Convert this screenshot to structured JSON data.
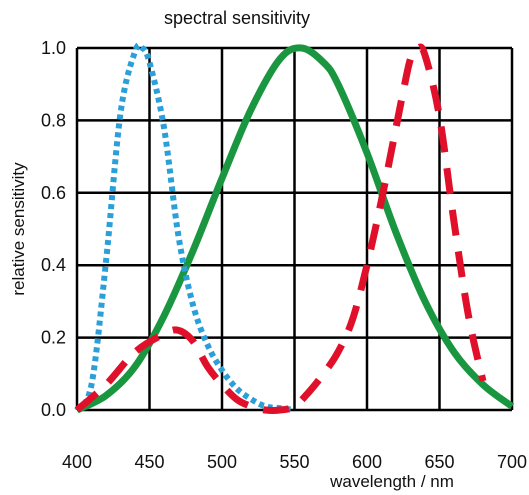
{
  "chart_data": {
    "type": "line",
    "title": "spectral sensitivity",
    "xlabel": "wavelength / nm",
    "ylabel": "relative sensitivity",
    "xlim": [
      400,
      700
    ],
    "ylim": [
      0,
      1
    ],
    "x_ticks": [
      "400",
      "450",
      "500",
      "550",
      "600",
      "650",
      "700"
    ],
    "y_ticks": [
      "0.0",
      "0.2",
      "0.4",
      "0.6",
      "0.8",
      "1.0"
    ],
    "grid": true,
    "legend": "none",
    "series": [
      {
        "color": "#2a9fd8",
        "style": "dotted",
        "x": [
          400,
          410,
          420,
          430,
          440,
          445,
          450,
          460,
          470,
          480,
          490,
          500,
          510,
          520,
          530,
          540,
          550
        ],
        "y": [
          0.0,
          0.07,
          0.41,
          0.82,
          0.99,
          1.0,
          0.96,
          0.78,
          0.48,
          0.29,
          0.18,
          0.11,
          0.06,
          0.03,
          0.01,
          0.005,
          0.0
        ]
      },
      {
        "color": "#1a9640",
        "style": "solid",
        "x": [
          400,
          420,
          440,
          460,
          480,
          500,
          520,
          540,
          555,
          570,
          580,
          600,
          620,
          640,
          660,
          680,
          700
        ],
        "y": [
          0.0,
          0.04,
          0.12,
          0.26,
          0.44,
          0.64,
          0.83,
          0.97,
          1.0,
          0.96,
          0.9,
          0.71,
          0.49,
          0.3,
          0.16,
          0.07,
          0.01
        ]
      },
      {
        "color": "#e0102a",
        "style": "dashed",
        "x": [
          400,
          420,
          440,
          460,
          470,
          480,
          490,
          500,
          510,
          520,
          530,
          540,
          550,
          560,
          570,
          580,
          590,
          600,
          610,
          620,
          625,
          630,
          635,
          640,
          650,
          660,
          670,
          680
        ],
        "y": [
          0.0,
          0.07,
          0.16,
          0.21,
          0.22,
          0.19,
          0.12,
          0.07,
          0.03,
          0.01,
          0.0,
          0.0,
          0.01,
          0.05,
          0.1,
          0.16,
          0.25,
          0.4,
          0.58,
          0.78,
          0.88,
          0.97,
          1.0,
          0.98,
          0.81,
          0.52,
          0.26,
          0.08
        ]
      }
    ]
  }
}
